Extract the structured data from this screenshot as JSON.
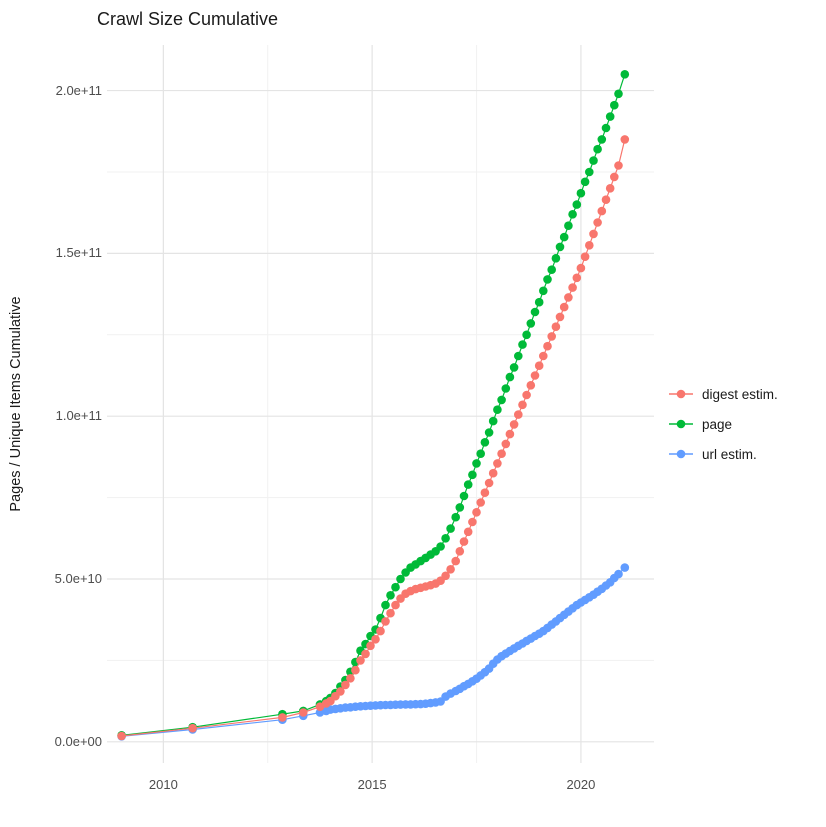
{
  "page": {
    "background": "#FFFFFF"
  },
  "chart_data": {
    "type": "scatter",
    "title": "Crawl Size Cumulative",
    "xlabel": "",
    "ylabel": "Pages / Unique Items Cumulative",
    "legend_position": "right",
    "grid": {
      "major_color": "#E4E4E4",
      "minor_color": "#F1F1F1",
      "visible": true
    },
    "x_ticks": [
      {
        "label": "2010",
        "value": 2010
      },
      {
        "label": "2015",
        "value": 2015
      },
      {
        "label": "2020",
        "value": 2020
      }
    ],
    "x_minor_ticks": [
      2012.5,
      2017.5
    ],
    "y_ticks": [
      {
        "label": "0.0e+00",
        "value_billion": 0
      },
      {
        "label": "5.0e+10",
        "value_billion": 50
      },
      {
        "label": "1.0e+11",
        "value_billion": 100
      },
      {
        "label": "1.5e+11",
        "value_billion": 150
      },
      {
        "label": "2.0e+11",
        "value_billion": 200
      }
    ],
    "y_minor_ticks_billion": [
      25,
      75,
      125,
      175
    ],
    "x_range": [
      2008.65,
      2021.75
    ],
    "y_range_billion": [
      -6.5,
      214
    ],
    "dense_years": [
      2014.0,
      2014.12,
      2014.24,
      2014.36,
      2014.48,
      2014.6,
      2014.72,
      2014.84,
      2014.96,
      2015.08,
      2015.2,
      2015.32,
      2015.44,
      2015.56,
      2015.68,
      2015.8,
      2015.92,
      2016.04,
      2016.16,
      2016.28,
      2016.4,
      2016.52,
      2016.64,
      2016.76,
      2016.88,
      2017.0,
      2017.1,
      2017.2,
      2017.3,
      2017.4,
      2017.5,
      2017.6,
      2017.7,
      2017.8,
      2017.9,
      2018.0,
      2018.1,
      2018.2,
      2018.3,
      2018.4,
      2018.5,
      2018.6,
      2018.7,
      2018.8,
      2018.9,
      2019.0,
      2019.1,
      2019.2,
      2019.3,
      2019.4,
      2019.5,
      2019.6,
      2019.7,
      2019.8,
      2019.9,
      2020.0,
      2020.1,
      2020.2,
      2020.3,
      2020.4,
      2020.5,
      2020.6,
      2020.7,
      2020.8,
      2020.9,
      2021.05
    ],
    "series": [
      {
        "name": "digest estim.",
        "color": "#F8766D",
        "sparse_points": [
          [
            2009.0,
            1.8
          ],
          [
            2010.7,
            4.2
          ],
          [
            2012.85,
            7.5
          ],
          [
            2013.35,
            9.0
          ],
          [
            2013.75,
            10.8
          ],
          [
            2013.9,
            11.8
          ]
        ],
        "values_dense_billion": [
          12.5,
          14,
          15.5,
          17.5,
          19.5,
          22,
          25,
          27,
          29.5,
          31.5,
          34,
          37,
          39.5,
          42,
          44,
          45.5,
          46.3,
          46.9,
          47.3,
          47.7,
          48.1,
          48.6,
          49.5,
          51,
          53,
          55.5,
          58.5,
          61.5,
          64.5,
          67.5,
          70.5,
          73.5,
          76.5,
          79.5,
          82.5,
          85.5,
          88.5,
          91.5,
          94.5,
          97.5,
          100.5,
          103.5,
          106.5,
          109.5,
          112.5,
          115.5,
          118.5,
          121.5,
          124.5,
          127.5,
          130.5,
          133.5,
          136.5,
          139.5,
          142.5,
          145.5,
          149,
          152.5,
          156,
          159.5,
          163,
          166.5,
          170,
          173.5,
          177,
          185
        ]
      },
      {
        "name": "page",
        "color": "#00BA38",
        "sparse_points": [
          [
            2009.0,
            2.0
          ],
          [
            2010.7,
            4.5
          ],
          [
            2012.85,
            8.5
          ],
          [
            2013.35,
            9.5
          ],
          [
            2013.75,
            11.5
          ],
          [
            2013.9,
            12.5
          ]
        ],
        "values_dense_billion": [
          13.5,
          15,
          17,
          19,
          21.5,
          24.5,
          28,
          30,
          32.5,
          34.5,
          38,
          42,
          45,
          47.5,
          50,
          52,
          53.5,
          54.5,
          55.5,
          56.5,
          57.5,
          58.5,
          60,
          62.5,
          65.5,
          69,
          72,
          75.5,
          79,
          82,
          85.5,
          88.5,
          92,
          95,
          98.5,
          102,
          105,
          108.5,
          112,
          115,
          118.5,
          122,
          125,
          128.5,
          132,
          135,
          138.5,
          142,
          145,
          148.5,
          152,
          155,
          158.5,
          162,
          165,
          168.5,
          172,
          175,
          178.5,
          182,
          185,
          188.5,
          192,
          195.5,
          199,
          205
        ]
      },
      {
        "name": "url estim.",
        "color": "#619CFF",
        "sparse_points": [
          [
            2009.0,
            1.7
          ],
          [
            2010.7,
            3.8
          ],
          [
            2012.85,
            6.8
          ],
          [
            2013.35,
            8.0
          ],
          [
            2013.75,
            9.0
          ],
          [
            2013.9,
            9.5
          ]
        ],
        "values_dense_billion": [
          9.9,
          10.1,
          10.3,
          10.5,
          10.6,
          10.8,
          10.9,
          11,
          11.1,
          11.2,
          11.25,
          11.3,
          11.35,
          11.4,
          11.45,
          11.5,
          11.5,
          11.55,
          11.6,
          11.7,
          11.9,
          12.1,
          12.4,
          13.9,
          14.8,
          15.6,
          16.3,
          17.1,
          17.8,
          18.6,
          19.4,
          20.4,
          21.4,
          22.5,
          24,
          25.3,
          26.3,
          27.1,
          27.9,
          28.7,
          29.5,
          30.2,
          31,
          31.7,
          32.5,
          33.2,
          34,
          35,
          36,
          37,
          38,
          39,
          40,
          41,
          42,
          42.8,
          43.6,
          44.4,
          45.2,
          46.1,
          47,
          48,
          49,
          50.3,
          51.5,
          53.5
        ]
      }
    ]
  },
  "legend": {
    "items": [
      {
        "label": "digest estim.",
        "color": "#F8766D"
      },
      {
        "label": "page",
        "color": "#00BA38"
      },
      {
        "label": "url estim.",
        "color": "#619CFF"
      }
    ]
  },
  "text_colors": {
    "title": "#1A1A1A",
    "axis_text": "#4D4D4D"
  }
}
